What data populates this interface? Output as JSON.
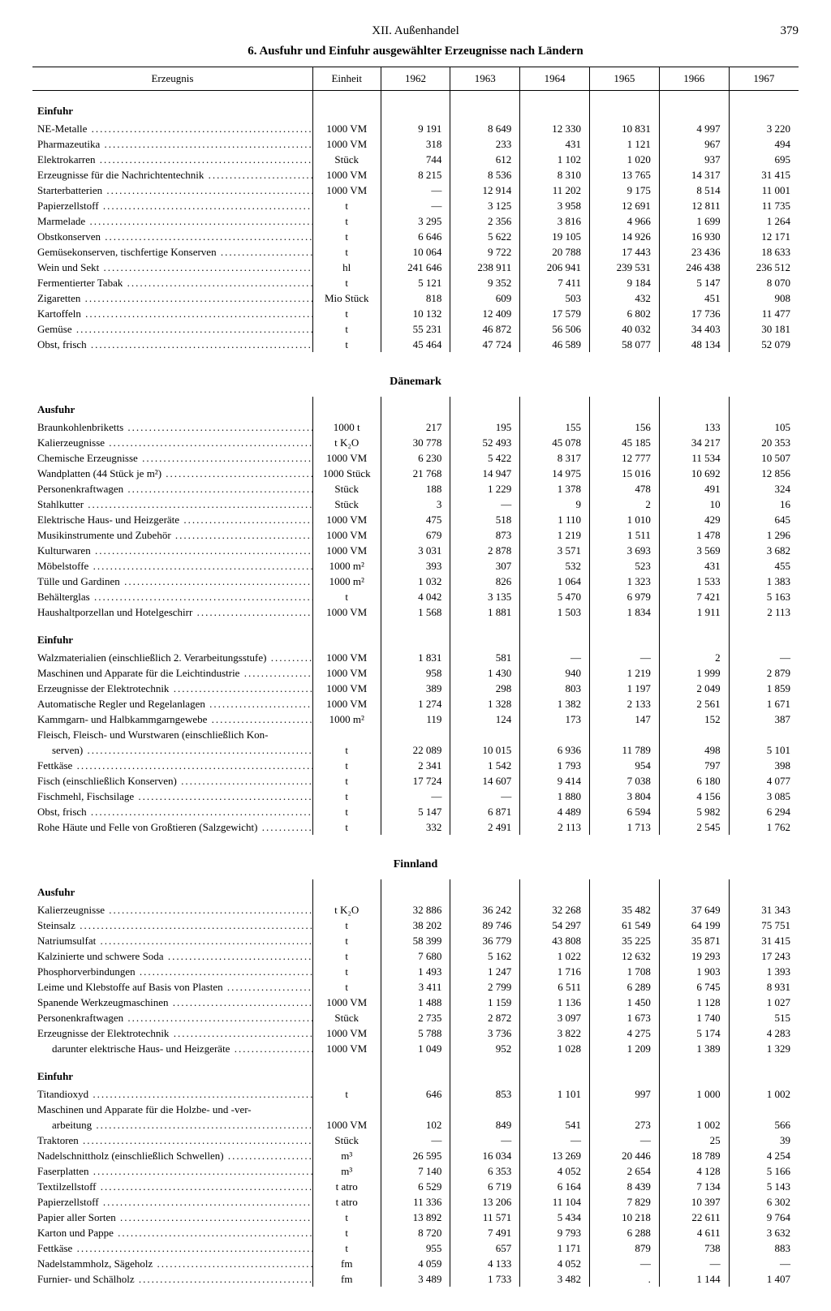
{
  "header": {
    "chapter": "XII. Außenhandel",
    "page": "379"
  },
  "title": "6. Ausfuhr und Einfuhr ausgewählter Erzeugnisse nach Ländern",
  "columns": {
    "product": "Erzeugnis",
    "unit": "Einheit",
    "years": [
      "1962",
      "1963",
      "1964",
      "1965",
      "1966",
      "1967"
    ]
  },
  "sections": [
    {
      "rows": [
        {
          "section": "Einfuhr"
        },
        {
          "p": "NE-Metalle",
          "u": "1000 VM",
          "v": [
            "9 191",
            "8 649",
            "12 330",
            "10 831",
            "4 997",
            "3 220"
          ]
        },
        {
          "p": "Pharmazeutika",
          "u": "1000 VM",
          "v": [
            "318",
            "233",
            "431",
            "1 121",
            "967",
            "494"
          ]
        },
        {
          "p": "Elektrokarren",
          "u": "Stück",
          "v": [
            "744",
            "612",
            "1 102",
            "1 020",
            "937",
            "695"
          ]
        },
        {
          "p": "Erzeugnisse für die Nachrichtentechnik",
          "u": "1000 VM",
          "v": [
            "8 215",
            "8 536",
            "8 310",
            "13 765",
            "14 317",
            "31 415"
          ]
        },
        {
          "p": "Starterbatterien",
          "u": "1000 VM",
          "v": [
            "—",
            "12 914",
            "11 202",
            "9 175",
            "8 514",
            "11 001"
          ]
        },
        {
          "p": "Papierzellstoff",
          "u": "t",
          "v": [
            "—",
            "3 125",
            "3 958",
            "12 691",
            "12 811",
            "11 735"
          ]
        },
        {
          "p": "Marmelade",
          "u": "t",
          "v": [
            "3 295",
            "2 356",
            "3 816",
            "4 966",
            "1 699",
            "1 264"
          ]
        },
        {
          "p": "Obstkonserven",
          "u": "t",
          "v": [
            "6 646",
            "5 622",
            "19 105",
            "14 926",
            "16 930",
            "12 171"
          ]
        },
        {
          "p": "Gemüsekonserven, tischfertige Konserven",
          "u": "t",
          "v": [
            "10 064",
            "9 722",
            "20 788",
            "17 443",
            "23 436",
            "18 633"
          ]
        },
        {
          "p": "Wein und Sekt",
          "u": "hl",
          "v": [
            "241 646",
            "238 911",
            "206 941",
            "239 531",
            "246 438",
            "236 512"
          ]
        },
        {
          "p": "Fermentierter Tabak",
          "u": "t",
          "v": [
            "5 121",
            "9 352",
            "7 411",
            "9 184",
            "5 147",
            "8 070"
          ]
        },
        {
          "p": "Zigaretten",
          "u": "Mio Stück",
          "v": [
            "818",
            "609",
            "503",
            "432",
            "451",
            "908"
          ]
        },
        {
          "p": "Kartoffeln",
          "u": "t",
          "v": [
            "10 132",
            "12 409",
            "17 579",
            "6 802",
            "17 736",
            "11 477"
          ]
        },
        {
          "p": "Gemüse",
          "u": "t",
          "v": [
            "55 231",
            "46 872",
            "56 506",
            "40 032",
            "34 403",
            "30 181"
          ]
        },
        {
          "p": "Obst, frisch",
          "u": "t",
          "v": [
            "45 464",
            "47 724",
            "46 589",
            "58 077",
            "48 134",
            "52 079"
          ]
        }
      ]
    },
    {
      "country": "Dänemark",
      "rows": [
        {
          "section": "Ausfuhr"
        },
        {
          "p": "Braunkohlenbriketts",
          "u": "1000 t",
          "v": [
            "217",
            "195",
            "155",
            "156",
            "133",
            "105"
          ]
        },
        {
          "p": "Kalierzeugnisse",
          "u": "t K₂O",
          "v": [
            "30 778",
            "52 493",
            "45 078",
            "45 185",
            "34 217",
            "20 353"
          ]
        },
        {
          "p": "Chemische Erzeugnisse",
          "u": "1000 VM",
          "v": [
            "6 230",
            "5 422",
            "8 317",
            "12 777",
            "11 534",
            "10 507"
          ]
        },
        {
          "p": "Wandplatten (44 Stück je m²)",
          "u": "1000 Stück",
          "v": [
            "21 768",
            "14 947",
            "14 975",
            "15 016",
            "10 692",
            "12 856"
          ]
        },
        {
          "p": "Personenkraftwagen",
          "u": "Stück",
          "v": [
            "188",
            "1 229",
            "1 378",
            "478",
            "491",
            "324"
          ]
        },
        {
          "p": "Stahlkutter",
          "u": "Stück",
          "v": [
            "3",
            "—",
            "9",
            "2",
            "10",
            "16"
          ]
        },
        {
          "p": "Elektrische Haus- und Heizgeräte",
          "u": "1000 VM",
          "v": [
            "475",
            "518",
            "1 110",
            "1 010",
            "429",
            "645"
          ]
        },
        {
          "p": "Musikinstrumente und Zubehör",
          "u": "1000 VM",
          "v": [
            "679",
            "873",
            "1 219",
            "1 511",
            "1 478",
            "1 296"
          ]
        },
        {
          "p": "Kulturwaren",
          "u": "1000 VM",
          "v": [
            "3 031",
            "2 878",
            "3 571",
            "3 693",
            "3 569",
            "3 682"
          ]
        },
        {
          "p": "Möbelstoffe",
          "u": "1000 m²",
          "v": [
            "393",
            "307",
            "532",
            "523",
            "431",
            "455"
          ]
        },
        {
          "p": "Tülle und Gardinen",
          "u": "1000 m²",
          "v": [
            "1 032",
            "826",
            "1 064",
            "1 323",
            "1 533",
            "1 383"
          ]
        },
        {
          "p": "Behälterglas",
          "u": "t",
          "v": [
            "4 042",
            "3 135",
            "5 470",
            "6 979",
            "7 421",
            "5 163"
          ]
        },
        {
          "p": "Haushaltporzellan und Hotelgeschirr",
          "u": "1000 VM",
          "v": [
            "1 568",
            "1 881",
            "1 503",
            "1 834",
            "1 911",
            "2 113"
          ]
        },
        {
          "gap": true
        },
        {
          "section": "Einfuhr"
        },
        {
          "p": "Walzmaterialien (einschließlich 2. Verarbeitungsstufe)",
          "u": "1000 VM",
          "v": [
            "1 831",
            "581",
            "—",
            "—",
            "2",
            "—"
          ]
        },
        {
          "p": "Maschinen und Apparate für die Leichtindustrie",
          "u": "1000 VM",
          "v": [
            "958",
            "1 430",
            "940",
            "1 219",
            "1 999",
            "2 879"
          ]
        },
        {
          "p": "Erzeugnisse der Elektrotechnik",
          "u": "1000 VM",
          "v": [
            "389",
            "298",
            "803",
            "1 197",
            "2 049",
            "1 859"
          ]
        },
        {
          "p": "Automatische Regler und Regelanlagen",
          "u": "1000 VM",
          "v": [
            "1 274",
            "1 328",
            "1 382",
            "2 133",
            "2 561",
            "1 671"
          ]
        },
        {
          "p": "Kammgarn- und Halbkammgarngewebe",
          "u": "1000 m²",
          "v": [
            "119",
            "124",
            "173",
            "147",
            "152",
            "387"
          ]
        },
        {
          "p": "Fleisch, Fleisch- und Wurstwaren (einschließlich Kon-",
          "u": "",
          "v": [
            "",
            "",
            "",
            "",
            "",
            ""
          ],
          "noleader": true
        },
        {
          "p": "serven)",
          "u": "t",
          "v": [
            "22 089",
            "10 015",
            "6 936",
            "11 789",
            "498",
            "5 101"
          ],
          "indent": true
        },
        {
          "p": "Fettkäse",
          "u": "t",
          "v": [
            "2 341",
            "1 542",
            "1 793",
            "954",
            "797",
            "398"
          ]
        },
        {
          "p": "Fisch (einschließlich Konserven)",
          "u": "t",
          "v": [
            "17 724",
            "14 607",
            "9 414",
            "7 038",
            "6 180",
            "4 077"
          ]
        },
        {
          "p": "Fischmehl, Fischsilage",
          "u": "t",
          "v": [
            "—",
            "—",
            "1 880",
            "3 804",
            "4 156",
            "3 085"
          ]
        },
        {
          "p": "Obst, frisch",
          "u": "t",
          "v": [
            "5 147",
            "6 871",
            "4 489",
            "6 594",
            "5 982",
            "6 294"
          ]
        },
        {
          "p": "Rohe Häute und Felle von Großtieren (Salzgewicht)",
          "u": "t",
          "v": [
            "332",
            "2 491",
            "2 113",
            "1 713",
            "2 545",
            "1 762"
          ]
        }
      ]
    },
    {
      "country": "Finnland",
      "rows": [
        {
          "section": "Ausfuhr"
        },
        {
          "p": "Kalierzeugnisse",
          "u": "t K₂O",
          "v": [
            "32 886",
            "36 242",
            "32 268",
            "35 482",
            "37 649",
            "31 343"
          ]
        },
        {
          "p": "Steinsalz",
          "u": "t",
          "v": [
            "38 202",
            "89 746",
            "54 297",
            "61 549",
            "64 199",
            "75 751"
          ]
        },
        {
          "p": "Natriumsulfat",
          "u": "t",
          "v": [
            "58 399",
            "36 779",
            "43 808",
            "35 225",
            "35 871",
            "31 415"
          ]
        },
        {
          "p": "Kalzinierte und schwere Soda",
          "u": "t",
          "v": [
            "7 680",
            "5 162",
            "1 022",
            "12 632",
            "19 293",
            "17 243"
          ]
        },
        {
          "p": "Phosphorverbindungen",
          "u": "t",
          "v": [
            "1 493",
            "1 247",
            "1 716",
            "1 708",
            "1 903",
            "1 393"
          ]
        },
        {
          "p": "Leime und Klebstoffe auf Basis von Plasten",
          "u": "t",
          "v": [
            "3 411",
            "2 799",
            "6 511",
            "6 289",
            "6 745",
            "8 931"
          ]
        },
        {
          "p": "Spanende Werkzeugmaschinen",
          "u": "1000 VM",
          "v": [
            "1 488",
            "1 159",
            "1 136",
            "1 450",
            "1 128",
            "1 027"
          ]
        },
        {
          "p": "Personenkraftwagen",
          "u": "Stück",
          "v": [
            "2 735",
            "2 872",
            "3 097",
            "1 673",
            "1 740",
            "515"
          ]
        },
        {
          "p": "Erzeugnisse der Elektrotechnik",
          "u": "1000 VM",
          "v": [
            "5 788",
            "3 736",
            "3 822",
            "4 275",
            "5 174",
            "4 283"
          ]
        },
        {
          "p": "darunter elektrische Haus- und Heizgeräte",
          "u": "1000 VM",
          "v": [
            "1 049",
            "952",
            "1 028",
            "1 209",
            "1 389",
            "1 329"
          ],
          "indent": true
        },
        {
          "gap": true
        },
        {
          "section": "Einfuhr"
        },
        {
          "p": "Titandioxyd",
          "u": "t",
          "v": [
            "646",
            "853",
            "1 101",
            "997",
            "1 000",
            "1 002"
          ]
        },
        {
          "p": "Maschinen und Apparate für die Holzbe- und -ver-",
          "u": "",
          "v": [
            "",
            "",
            "",
            "",
            "",
            ""
          ],
          "noleader": true
        },
        {
          "p": "arbeitung",
          "u": "1000 VM",
          "v": [
            "102",
            "849",
            "541",
            "273",
            "1 002",
            "566"
          ],
          "indent": true
        },
        {
          "p": "Traktoren",
          "u": "Stück",
          "v": [
            "—",
            "—",
            "—",
            "—",
            "25",
            "39"
          ]
        },
        {
          "p": "Nadelschnittholz (einschließlich Schwellen)",
          "u": "m³",
          "v": [
            "26 595",
            "16 034",
            "13 269",
            "20 446",
            "18 789",
            "4 254"
          ]
        },
        {
          "p": "Faserplatten",
          "u": "m³",
          "v": [
            "7 140",
            "6 353",
            "4 052",
            "2 654",
            "4 128",
            "5 166"
          ]
        },
        {
          "p": "Textilzellstoff",
          "u": "t atro",
          "v": [
            "6 529",
            "6 719",
            "6 164",
            "8 439",
            "7 134",
            "5 143"
          ]
        },
        {
          "p": "Papierzellstoff",
          "u": "t atro",
          "v": [
            "11 336",
            "13 206",
            "11 104",
            "7 829",
            "10 397",
            "6 302"
          ]
        },
        {
          "p": "Papier aller Sorten",
          "u": "t",
          "v": [
            "13 892",
            "11 571",
            "5 434",
            "10 218",
            "22 611",
            "9 764"
          ]
        },
        {
          "p": "Karton und Pappe",
          "u": "t",
          "v": [
            "8 720",
            "7 491",
            "9 793",
            "6 288",
            "4 611",
            "3 632"
          ]
        },
        {
          "p": "Fettkäse",
          "u": "t",
          "v": [
            "955",
            "657",
            "1 171",
            "879",
            "738",
            "883"
          ]
        },
        {
          "p": "Nadelstammholz, Sägeholz",
          "u": "fm",
          "v": [
            "4 059",
            "4 133",
            "4 052",
            "—",
            "—",
            "—"
          ]
        },
        {
          "p": "Furnier- und Schälholz",
          "u": "fm",
          "v": [
            "3 489",
            "1 733",
            "3 482",
            ".",
            "1 144",
            "1 407"
          ]
        }
      ]
    }
  ]
}
